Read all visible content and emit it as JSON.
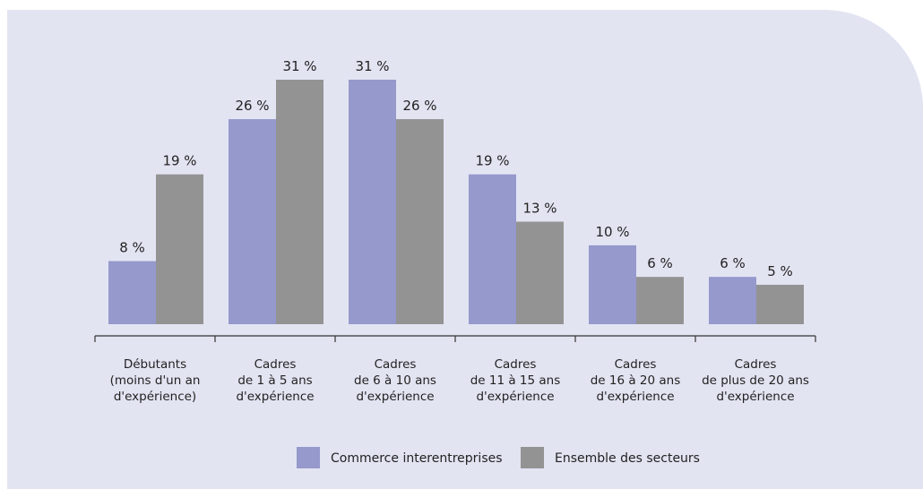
{
  "colors": {
    "panel_bg": "#e3e4f2",
    "axis": "#333333"
  },
  "chart_data": {
    "type": "bar",
    "categories": [
      [
        "Débutants",
        "(moins d'un an",
        "d'expérience)"
      ],
      [
        "Cadres",
        "de 1 à 5 ans",
        "d'expérience"
      ],
      [
        "Cadres",
        "de 6 à 10 ans",
        "d'expérience"
      ],
      [
        "Cadres",
        "de 11 à 15 ans",
        "d'expérience"
      ],
      [
        "Cadres",
        "de 16 à 20 ans",
        "d'expérience"
      ],
      [
        "Cadres",
        "de plus de 20 ans",
        "d'expérience"
      ]
    ],
    "series": [
      {
        "name": "Commerce interentreprises",
        "color": "#9599cc",
        "values": [
          8,
          26,
          31,
          19,
          10,
          6
        ]
      },
      {
        "name": "Ensemble des secteurs",
        "color": "#939393",
        "values": [
          19,
          31,
          26,
          13,
          6,
          5
        ]
      }
    ],
    "value_suffix": " %",
    "ylim": [
      0,
      31
    ],
    "grid": false,
    "legend_position": "bottom-center"
  }
}
